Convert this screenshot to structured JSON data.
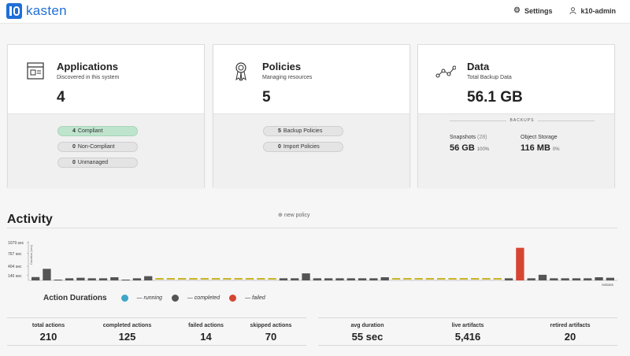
{
  "brand": {
    "name": "kasten"
  },
  "topnav": {
    "settings": "Settings",
    "user": "k10-admin"
  },
  "applications": {
    "title": "Applications",
    "subtitle": "Discovered in this system",
    "count": "4",
    "compliant": {
      "n": "4",
      "label": "Compliant"
    },
    "noncompliant": {
      "n": "0",
      "label": "Non-Compliant"
    },
    "unmanaged": {
      "n": "0",
      "label": "Unmanaged"
    }
  },
  "policies": {
    "title": "Policies",
    "subtitle": "Managing resources",
    "count": "5",
    "backup": {
      "n": "5",
      "label": "Backup Policies"
    },
    "import": {
      "n": "0",
      "label": "Import Policies"
    },
    "new_policy": "new policy"
  },
  "data": {
    "title": "Data",
    "subtitle": "Total Backup Data",
    "total": "56.1 GB",
    "backups_label": "BACKUPS",
    "snapshots": {
      "label": "Snapshots",
      "count": "(28)",
      "size": "56 GB",
      "pct": "100%"
    },
    "object_storage": {
      "label": "Object Storage",
      "size": "116 MB",
      "pct": "0%"
    }
  },
  "activity": {
    "title": "Activity",
    "legend_title": "Action Durations",
    "legend": {
      "running": "— running",
      "completed": "— completed",
      "failed": "— failed"
    },
    "colors": {
      "running": "#3ea6c8",
      "completed": "#555555",
      "failed": "#d64532",
      "skipped": "#c9b52a"
    }
  },
  "chart_data": {
    "type": "bar",
    "ylabel": "Duration (sec)",
    "xlabel": "Actions",
    "yticks": [
      "1079 sec",
      "767 sec",
      "404 sec",
      "140 sec"
    ],
    "ytick_values": [
      1079,
      767,
      404,
      140
    ],
    "ylim": [
      0,
      1079
    ],
    "values": [
      95,
      330,
      0,
      60,
      75,
      60,
      60,
      90,
      0,
      60,
      120,
      0,
      0,
      0,
      0,
      0,
      0,
      0,
      0,
      0,
      0,
      0,
      60,
      60,
      200,
      60,
      60,
      60,
      60,
      60,
      60,
      90,
      0,
      0,
      0,
      0,
      0,
      0,
      0,
      0,
      0,
      0,
      60,
      930,
      60,
      160,
      60,
      60,
      60,
      60,
      90,
      75
    ],
    "status": [
      "completed",
      "completed",
      "completed",
      "completed",
      "completed",
      "completed",
      "completed",
      "completed",
      "completed",
      "completed",
      "completed",
      "skipped",
      "skipped",
      "skipped",
      "skipped",
      "skipped",
      "skipped",
      "skipped",
      "skipped",
      "skipped",
      "skipped",
      "skipped",
      "completed",
      "completed",
      "completed",
      "completed",
      "completed",
      "completed",
      "completed",
      "completed",
      "completed",
      "completed",
      "skipped",
      "skipped",
      "skipped",
      "skipped",
      "skipped",
      "skipped",
      "skipped",
      "skipped",
      "skipped",
      "skipped",
      "completed",
      "failed",
      "completed",
      "completed",
      "completed",
      "completed",
      "completed",
      "completed",
      "completed",
      "completed"
    ]
  },
  "summary_left": [
    {
      "label": "total actions",
      "value": "210"
    },
    {
      "label": "completed actions",
      "value": "125"
    },
    {
      "label": "failed actions",
      "value": "14"
    },
    {
      "label": "skipped actions",
      "value": "70"
    }
  ],
  "summary_right": [
    {
      "label": "avg duration",
      "value": "55 sec"
    },
    {
      "label": "live artifacts",
      "value": "5,416"
    },
    {
      "label": "retired artifacts",
      "value": "20"
    }
  ]
}
